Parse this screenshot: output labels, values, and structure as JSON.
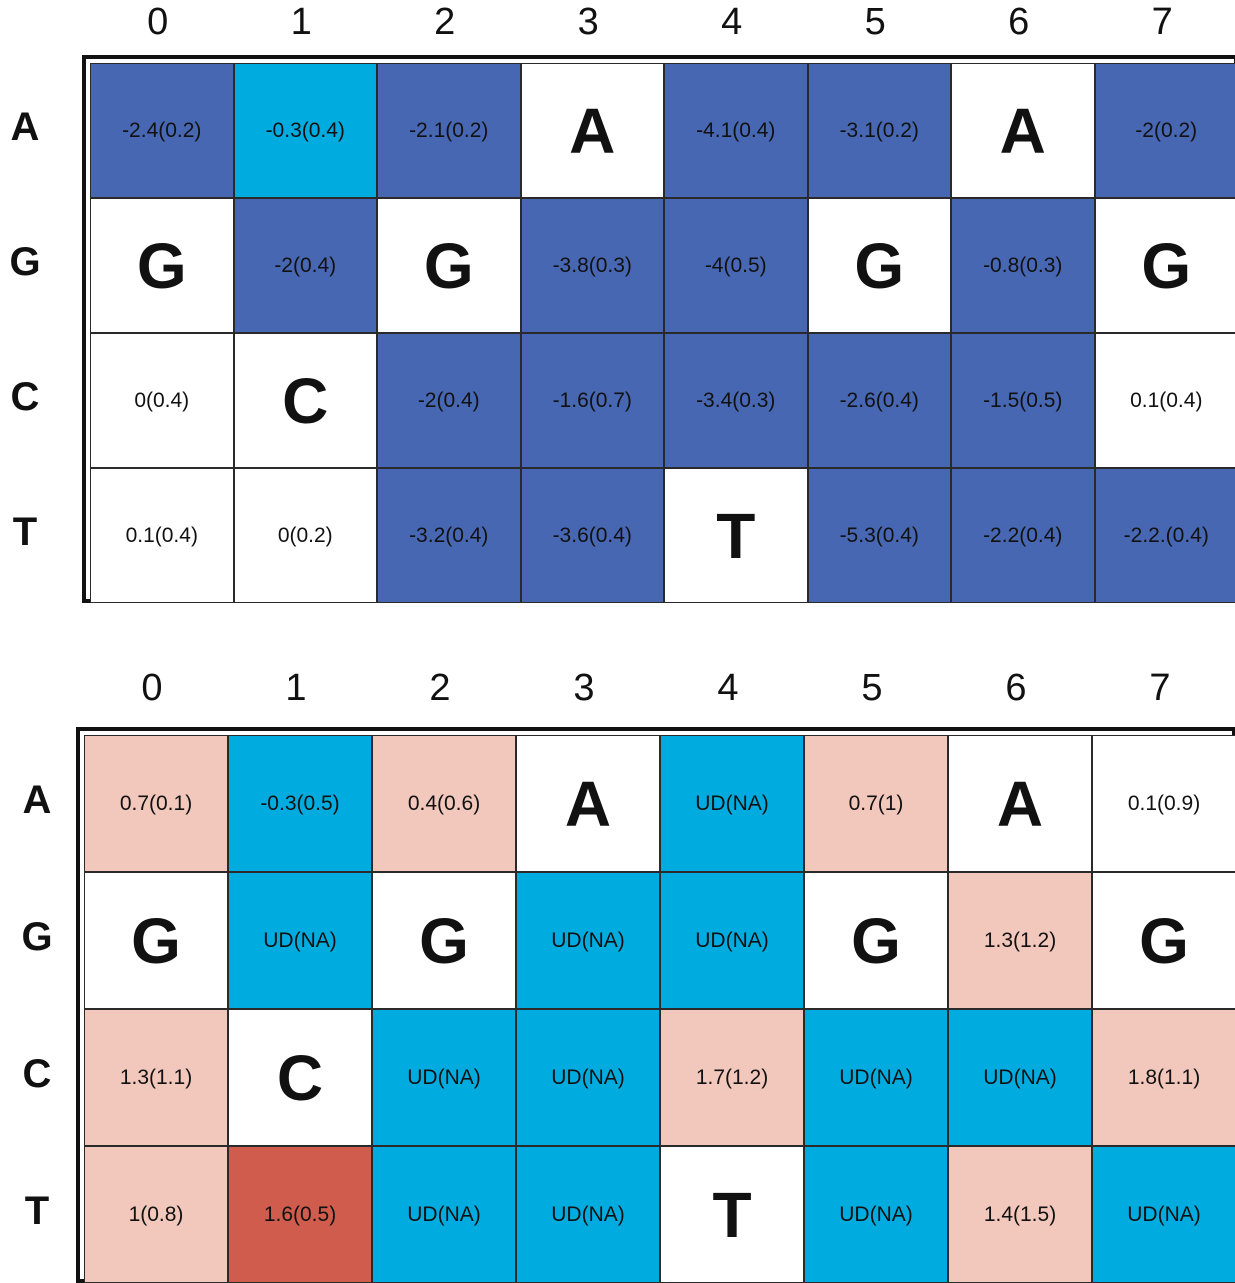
{
  "colors": {
    "dark_blue": "#4767b3",
    "light_blue": "#00acdf",
    "white": "#ffffff",
    "light_pink": "#f2c7bc",
    "dark_red": "#cf5c4d"
  },
  "chart_data": [
    {
      "type": "heatmap",
      "title": "",
      "columns": [
        "0",
        "1",
        "2",
        "3",
        "4",
        "5",
        "6",
        "7"
      ],
      "rows": [
        "A",
        "G",
        "C",
        "T"
      ],
      "cells": [
        [
          {
            "text": "-2.4(0.2)",
            "color": "#4767b3"
          },
          {
            "text": "-0.3(0.4)",
            "color": "#00acdf"
          },
          {
            "text": "-2.1(0.2)",
            "color": "#4767b3"
          },
          {
            "text": "A",
            "color": "#ffffff",
            "base": true
          },
          {
            "text": "-4.1(0.4)",
            "color": "#4767b3"
          },
          {
            "text": "-3.1(0.2)",
            "color": "#4767b3"
          },
          {
            "text": "A",
            "color": "#ffffff",
            "base": true
          },
          {
            "text": "-2(0.2)",
            "color": "#4767b3"
          }
        ],
        [
          {
            "text": "G",
            "color": "#ffffff",
            "base": true
          },
          {
            "text": "-2(0.4)",
            "color": "#4767b3"
          },
          {
            "text": "G",
            "color": "#ffffff",
            "base": true
          },
          {
            "text": "-3.8(0.3)",
            "color": "#4767b3"
          },
          {
            "text": "-4(0.5)",
            "color": "#4767b3"
          },
          {
            "text": "G",
            "color": "#ffffff",
            "base": true
          },
          {
            "text": "-0.8(0.3)",
            "color": "#4767b3"
          },
          {
            "text": "G",
            "color": "#ffffff",
            "base": true
          }
        ],
        [
          {
            "text": "0(0.4)",
            "color": "#ffffff"
          },
          {
            "text": "C",
            "color": "#ffffff",
            "base": true
          },
          {
            "text": "-2(0.4)",
            "color": "#4767b3"
          },
          {
            "text": "-1.6(0.7)",
            "color": "#4767b3"
          },
          {
            "text": "-3.4(0.3)",
            "color": "#4767b3"
          },
          {
            "text": "-2.6(0.4)",
            "color": "#4767b3"
          },
          {
            "text": "-1.5(0.5)",
            "color": "#4767b3"
          },
          {
            "text": "0.1(0.4)",
            "color": "#ffffff"
          }
        ],
        [
          {
            "text": "0.1(0.4)",
            "color": "#ffffff"
          },
          {
            "text": "0(0.2)",
            "color": "#ffffff"
          },
          {
            "text": "-3.2(0.4)",
            "color": "#4767b3"
          },
          {
            "text": "-3.6(0.4)",
            "color": "#4767b3"
          },
          {
            "text": "T",
            "color": "#ffffff",
            "base": true
          },
          {
            "text": "-5.3(0.4)",
            "color": "#4767b3"
          },
          {
            "text": "-2.2(0.4)",
            "color": "#4767b3"
          },
          {
            "text": "-2.2.(0.4)",
            "color": "#4767b3"
          }
        ]
      ]
    },
    {
      "type": "heatmap",
      "title": "",
      "columns": [
        "0",
        "1",
        "2",
        "3",
        "4",
        "5",
        "6",
        "7"
      ],
      "rows": [
        "A",
        "G",
        "C",
        "T"
      ],
      "cells": [
        [
          {
            "text": "0.7(0.1)",
            "color": "#f2c7bc"
          },
          {
            "text": "-0.3(0.5)",
            "color": "#00acdf"
          },
          {
            "text": "0.4(0.6)",
            "color": "#f2c7bc"
          },
          {
            "text": "A",
            "color": "#ffffff",
            "base": true
          },
          {
            "text": "UD(NA)",
            "color": "#00acdf"
          },
          {
            "text": "0.7(1)",
            "color": "#f2c7bc"
          },
          {
            "text": "A",
            "color": "#ffffff",
            "base": true
          },
          {
            "text": "0.1(0.9)",
            "color": "#ffffff"
          }
        ],
        [
          {
            "text": "G",
            "color": "#ffffff",
            "base": true
          },
          {
            "text": "UD(NA)",
            "color": "#00acdf"
          },
          {
            "text": "G",
            "color": "#ffffff",
            "base": true
          },
          {
            "text": "UD(NA)",
            "color": "#00acdf"
          },
          {
            "text": "UD(NA)",
            "color": "#00acdf"
          },
          {
            "text": "G",
            "color": "#ffffff",
            "base": true
          },
          {
            "text": "1.3(1.2)",
            "color": "#f2c7bc"
          },
          {
            "text": "G",
            "color": "#ffffff",
            "base": true
          }
        ],
        [
          {
            "text": "1.3(1.1)",
            "color": "#f2c7bc"
          },
          {
            "text": "C",
            "color": "#ffffff",
            "base": true
          },
          {
            "text": "UD(NA)",
            "color": "#00acdf"
          },
          {
            "text": "UD(NA)",
            "color": "#00acdf"
          },
          {
            "text": "1.7(1.2)",
            "color": "#f2c7bc"
          },
          {
            "text": "UD(NA)",
            "color": "#00acdf"
          },
          {
            "text": "UD(NA)",
            "color": "#00acdf"
          },
          {
            "text": "1.8(1.1)",
            "color": "#f2c7bc"
          }
        ],
        [
          {
            "text": "1(0.8)",
            "color": "#f2c7bc"
          },
          {
            "text": "1.6(0.5)",
            "color": "#cf5c4d"
          },
          {
            "text": "UD(NA)",
            "color": "#00acdf"
          },
          {
            "text": "UD(NA)",
            "color": "#00acdf"
          },
          {
            "text": "T",
            "color": "#ffffff",
            "base": true
          },
          {
            "text": "UD(NA)",
            "color": "#00acdf"
          },
          {
            "text": "1.4(1.5)",
            "color": "#f2c7bc"
          },
          {
            "text": "UD(NA)",
            "color": "#00acdf"
          }
        ]
      ]
    }
  ]
}
